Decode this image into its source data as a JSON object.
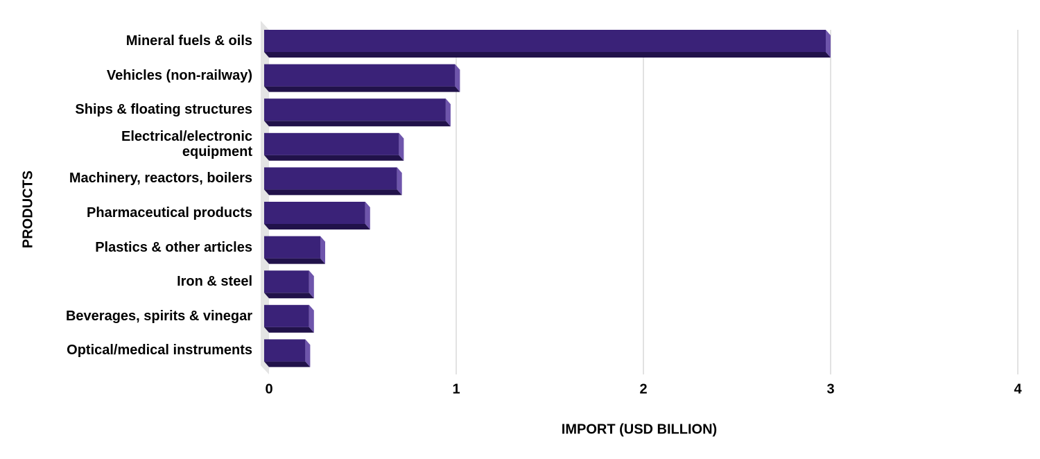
{
  "chart_data": {
    "type": "bar",
    "orientation": "horizontal",
    "x_label": "IMPORT (USD BILLION)",
    "y_label": "PRODUCTS",
    "categories": [
      "Mineral fuels & oils",
      "Vehicles (non-railway)",
      "Ships & floating structures",
      "Electrical/electronic equipment",
      "Machinery, reactors, boilers",
      "Pharmaceutical products",
      "Plastics & other articles",
      "Iron & steel",
      "Beverages, spirits & vinegar",
      "Optical/medical instruments"
    ],
    "values": [
      3.0,
      1.02,
      0.97,
      0.72,
      0.71,
      0.54,
      0.3,
      0.24,
      0.24,
      0.22
    ],
    "color": "#3a2278",
    "xlim": [
      0,
      4
    ],
    "xticks": [
      0,
      1,
      2,
      3,
      4
    ],
    "grid": true
  }
}
